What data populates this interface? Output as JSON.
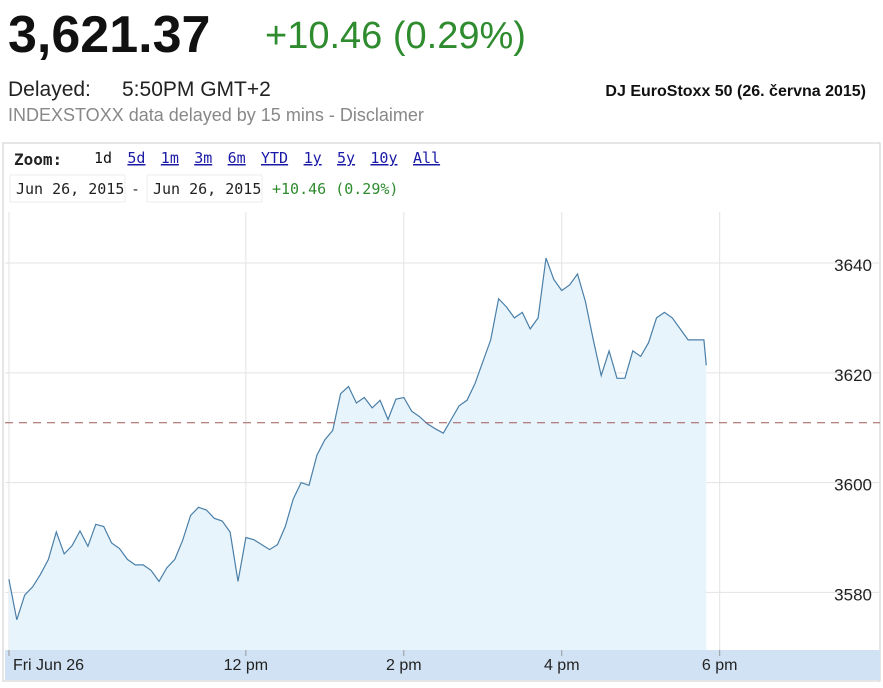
{
  "header": {
    "price": "3,621.37",
    "change": "+10.46 (0.29%)",
    "delayed_label": "Delayed:",
    "time": "5:50PM GMT+2",
    "note": "INDEXSTOXX data delayed by 15 mins - Disclaimer",
    "caption": "DJ EuroStoxx 50 (26. června 2015)"
  },
  "zoom": {
    "label": "Zoom:",
    "buttons": [
      "1d",
      "5d",
      "1m",
      "3m",
      "6m",
      "YTD",
      "1y",
      "5y",
      "10y",
      "All"
    ]
  },
  "range": {
    "from": "Jun 26, 2015",
    "separator": "-",
    "to": "Jun 26, 2015",
    "change": "+10.46 (0.29%)"
  },
  "chart_data": {
    "type": "area",
    "x": [
      9.0,
      9.1,
      9.2,
      9.3,
      9.4,
      9.5,
      9.6,
      9.7,
      9.8,
      9.9,
      10.0,
      10.1,
      10.2,
      10.3,
      10.4,
      10.5,
      10.6,
      10.7,
      10.8,
      10.9,
      11.0,
      11.1,
      11.2,
      11.3,
      11.4,
      11.5,
      11.6,
      11.7,
      11.8,
      11.9,
      12.0,
      12.1,
      12.2,
      12.3,
      12.4,
      12.5,
      12.6,
      12.7,
      12.8,
      12.9,
      13.0,
      13.1,
      13.2,
      13.3,
      13.4,
      13.5,
      13.6,
      13.7,
      13.8,
      13.9,
      14.0,
      14.1,
      14.2,
      14.3,
      14.4,
      14.5,
      14.6,
      14.7,
      14.8,
      14.9,
      15.0,
      15.1,
      15.2,
      15.3,
      15.4,
      15.5,
      15.6,
      15.7,
      15.8,
      15.9,
      16.0,
      16.1,
      16.2,
      16.3,
      16.4,
      16.5,
      16.6,
      16.7,
      16.8,
      16.9,
      17.0,
      17.1,
      17.2,
      17.3,
      17.4,
      17.5,
      17.6,
      17.7,
      17.8,
      17.83
    ],
    "series": [
      {
        "name": "DJ EuroStoxx 50",
        "color": "#4a7fa8",
        "values": [
          3582.4,
          3575,
          3579.5,
          3581,
          3583.3,
          3586,
          3591,
          3587,
          3588.5,
          3591.2,
          3588.4,
          3592.4,
          3592,
          3589,
          3588,
          3586,
          3585,
          3585,
          3584,
          3582,
          3584.5,
          3586,
          3589.5,
          3594,
          3595.5,
          3595,
          3593.5,
          3593,
          3591,
          3582,
          3590,
          3589.6,
          3588.7,
          3587.8,
          3588.7,
          3592,
          3597,
          3600,
          3599.5,
          3605,
          3607.8,
          3609.5,
          3616.2,
          3617.5,
          3614.5,
          3615.5,
          3613.6,
          3615,
          3611.5,
          3615.2,
          3615.5,
          3613,
          3612,
          3610.7,
          3609.8,
          3609,
          3611.5,
          3614,
          3615,
          3618,
          3622,
          3626,
          3633.5,
          3632,
          3630,
          3631,
          3628,
          3630,
          3640.9,
          3637,
          3635,
          3636,
          3638,
          3633,
          3626,
          3619.5,
          3624,
          3619,
          3619,
          3624,
          3623,
          3625.5,
          3630,
          3631,
          3630,
          3628,
          3626,
          3626,
          3626,
          3621.37
        ]
      }
    ],
    "previous_close": 3610.91,
    "xlim": [
      8.95,
      20.03
    ],
    "ylim": [
      3569.5,
      3649.3
    ],
    "xticks": [
      {
        "value": 9,
        "label": "Fri Jun 26"
      },
      {
        "value": 12,
        "label": "12 pm"
      },
      {
        "value": 14,
        "label": "2 pm"
      },
      {
        "value": 16,
        "label": "4 pm"
      },
      {
        "value": 18,
        "label": "6 pm"
      }
    ],
    "yticks": [
      3580,
      3600,
      3620,
      3640
    ],
    "grid": true
  }
}
